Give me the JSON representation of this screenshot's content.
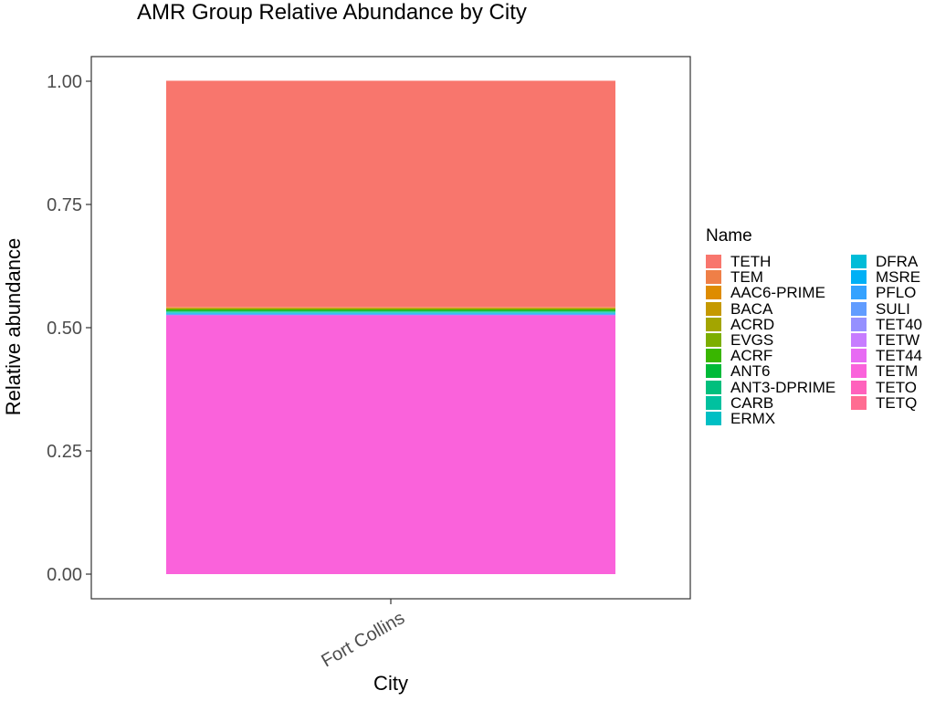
{
  "chart_data": {
    "type": "bar",
    "stacked": true,
    "title": "AMR Group Relative Abundance by City",
    "xlabel": "City",
    "ylabel": "Relative abundance",
    "categories": [
      "Fort Collins"
    ],
    "ylim": [
      0,
      1
    ],
    "yticks": [
      "0.00",
      "0.25",
      "0.50",
      "0.75",
      "1.00"
    ],
    "grid": false,
    "legend_placement": "right",
    "legend_title": "Name",
    "series": [
      {
        "name": "TETH",
        "color": "#F8766D",
        "values": [
          0.459
        ]
      },
      {
        "name": "TEM",
        "color": "#EF7F47",
        "values": [
          0.001
        ]
      },
      {
        "name": "AAC6-PRIME",
        "color": "#DE8C00",
        "values": [
          0.001
        ]
      },
      {
        "name": "BACA",
        "color": "#C59900",
        "values": [
          0.001
        ]
      },
      {
        "name": "ACRD",
        "color": "#A3A500",
        "values": [
          0.001
        ]
      },
      {
        "name": "EVGS",
        "color": "#7CAE00",
        "values": [
          0.001
        ]
      },
      {
        "name": "ACRF",
        "color": "#39B600",
        "values": [
          0.002
        ]
      },
      {
        "name": "ANT6",
        "color": "#00BA38",
        "values": [
          0.002
        ]
      },
      {
        "name": "ANT3-DPRIME",
        "color": "#00BF7D",
        "values": [
          0.001
        ]
      },
      {
        "name": "CARB",
        "color": "#00C19F",
        "values": [
          0.001
        ]
      },
      {
        "name": "ERMX",
        "color": "#00BFC4",
        "values": [
          0.001
        ]
      },
      {
        "name": "DFRA",
        "color": "#00BCD8",
        "values": [
          0.001
        ]
      },
      {
        "name": "MSRE",
        "color": "#00B0F6",
        "values": [
          0.001
        ]
      },
      {
        "name": "PFLO",
        "color": "#35A2FF",
        "values": [
          0.001
        ]
      },
      {
        "name": "SULI",
        "color": "#619CFF",
        "values": [
          0.0005
        ]
      },
      {
        "name": "TET40",
        "color": "#9590FF",
        "values": [
          0.0005
        ]
      },
      {
        "name": "TETW",
        "color": "#C77CFF",
        "values": [
          0.0005
        ]
      },
      {
        "name": "TET44",
        "color": "#E76BF3",
        "values": [
          0.0005
        ]
      },
      {
        "name": "TETM",
        "color": "#FA62DB",
        "values": [
          0.525
        ]
      },
      {
        "name": "TETO",
        "color": "#FF62BC",
        "values": [
          0.0
        ]
      },
      {
        "name": "TETQ",
        "color": "#FF6C91",
        "values": [
          0.0
        ]
      }
    ]
  }
}
